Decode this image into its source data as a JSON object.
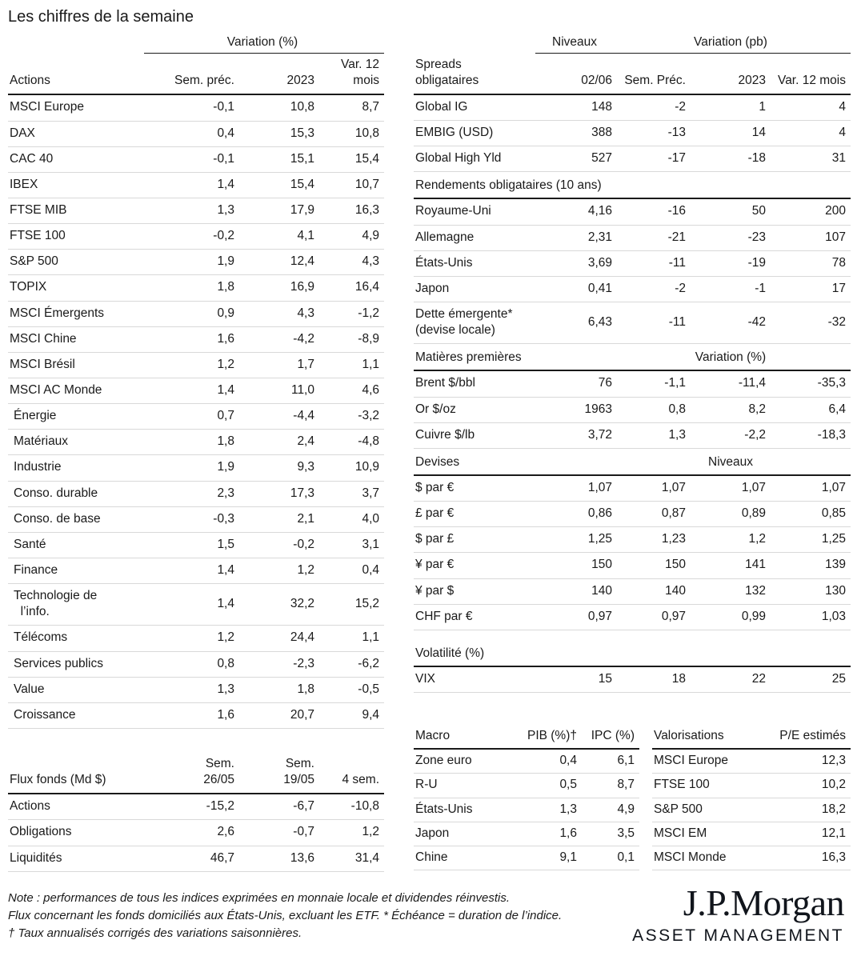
{
  "page_title": "Les chiffres de la semaine",
  "colors": {
    "text": "#1a1a1a",
    "rule_dark": "#1a1a1a",
    "rule_light": "#d9d9d9",
    "background": "#ffffff"
  },
  "actions_table": {
    "group_header": "Variation (%)",
    "col_label": "Actions",
    "columns": [
      "Sem. préc.",
      "2023",
      "Var. 12 mois"
    ],
    "rows": [
      {
        "label": "MSCI Europe",
        "values": [
          "-0,1",
          "10,8",
          "8,7"
        ]
      },
      {
        "label": "DAX",
        "values": [
          "0,4",
          "15,3",
          "10,8"
        ]
      },
      {
        "label": "CAC 40",
        "values": [
          "-0,1",
          "15,1",
          "15,4"
        ]
      },
      {
        "label": "IBEX",
        "values": [
          "1,4",
          "15,4",
          "10,7"
        ]
      },
      {
        "label": "FTSE MIB",
        "values": [
          "1,3",
          "17,9",
          "16,3"
        ]
      },
      {
        "label": "FTSE 100",
        "values": [
          "-0,2",
          "4,1",
          "4,9"
        ]
      },
      {
        "label": "S&P 500",
        "values": [
          "1,9",
          "12,4",
          "4,3"
        ]
      },
      {
        "label": "TOPIX",
        "values": [
          "1,8",
          "16,9",
          "16,4"
        ]
      },
      {
        "label": "MSCI Émergents",
        "values": [
          "0,9",
          "4,3",
          "-1,2"
        ]
      },
      {
        "label": "MSCI Chine",
        "values": [
          "1,6",
          "-4,2",
          "-8,9"
        ]
      },
      {
        "label": "MSCI Brésil",
        "values": [
          "1,2",
          "1,7",
          "1,1"
        ]
      },
      {
        "label": "MSCI AC Monde",
        "values": [
          "1,4",
          "11,0",
          "4,6"
        ]
      },
      {
        "label": "Énergie",
        "indent": true,
        "values": [
          "0,7",
          "-4,4",
          "-3,2"
        ]
      },
      {
        "label": "Matériaux",
        "indent": true,
        "values": [
          "1,8",
          "2,4",
          "-4,8"
        ]
      },
      {
        "label": "Industrie",
        "indent": true,
        "values": [
          "1,9",
          "9,3",
          "10,9"
        ]
      },
      {
        "label": "Conso. durable",
        "indent": true,
        "values": [
          "2,3",
          "17,3",
          "3,7"
        ]
      },
      {
        "label": "Conso. de base",
        "indent": true,
        "values": [
          "-0,3",
          "2,1",
          "4,0"
        ]
      },
      {
        "label": "Santé",
        "indent": true,
        "values": [
          "1,5",
          "-0,2",
          "3,1"
        ]
      },
      {
        "label": "Finance",
        "indent": true,
        "values": [
          "1,4",
          "1,2",
          "0,4"
        ]
      },
      {
        "label": "Technologie de\n  l’info.",
        "indent": true,
        "values": [
          "1,4",
          "32,2",
          "15,2"
        ]
      },
      {
        "label": "Télécoms",
        "indent": true,
        "values": [
          "1,2",
          "24,4",
          "1,1"
        ]
      },
      {
        "label": "Services publics",
        "indent": true,
        "values": [
          "0,8",
          "-2,3",
          "-6,2"
        ]
      },
      {
        "label": "Value",
        "indent": true,
        "values": [
          "1,3",
          "1,8",
          "-0,5"
        ]
      },
      {
        "label": "Croissance",
        "indent": true,
        "values": [
          "1,6",
          "20,7",
          "9,4"
        ]
      }
    ]
  },
  "flux_table": {
    "col_label": "Flux fonds (Md $)",
    "columns": [
      "Sem.\n26/05",
      "Sem.\n19/05",
      "4 sem."
    ],
    "rows": [
      {
        "label": "Actions",
        "values": [
          "-15,2",
          "-6,7",
          "-10,8"
        ]
      },
      {
        "label": "Obligations",
        "values": [
          "2,6",
          "-0,7",
          "1,2"
        ]
      },
      {
        "label": "Liquidités",
        "values": [
          "46,7",
          "13,6",
          "31,4"
        ]
      }
    ]
  },
  "spreads_table": {
    "group_header_niveaux": "Niveaux",
    "group_header_variation": "Variation (pb)",
    "col_label": "Spreads\nobligataires",
    "columns": [
      "02/06",
      "Sem. Préc.",
      "2023",
      "Var. 12 mois"
    ],
    "rows": [
      {
        "label": "Global IG",
        "values": [
          "148",
          "-2",
          "1",
          "4"
        ]
      },
      {
        "label": "EMBIG (USD)",
        "values": [
          "388",
          "-13",
          "14",
          "4"
        ]
      },
      {
        "label": "Global High Yld",
        "values": [
          "527",
          "-17",
          "-18",
          "31"
        ]
      }
    ]
  },
  "rendements_table": {
    "title": "Rendements obligataires (10 ans)",
    "rows": [
      {
        "label": "Royaume-Uni",
        "values": [
          "4,16",
          "-16",
          "50",
          "200"
        ]
      },
      {
        "label": "Allemagne",
        "values": [
          "2,31",
          "-21",
          "-23",
          "107"
        ]
      },
      {
        "label": "États-Unis",
        "values": [
          "3,69",
          "-11",
          "-19",
          "78"
        ]
      },
      {
        "label": "Japon",
        "values": [
          "0,41",
          "-2",
          "-1",
          "17"
        ]
      },
      {
        "label": "Dette émergente*\n(devise locale)",
        "values": [
          "6,43",
          "-11",
          "-42",
          "-32"
        ]
      }
    ]
  },
  "matieres_table": {
    "title": "Matières premières",
    "group_header": "Variation (%)",
    "rows": [
      {
        "label": "Brent $/bbl",
        "values": [
          "76",
          "-1,1",
          "-11,4",
          "-35,3"
        ]
      },
      {
        "label": "Or $/oz",
        "values": [
          "1963",
          "0,8",
          "8,2",
          "6,4"
        ]
      },
      {
        "label": "Cuivre $/lb",
        "values": [
          "3,72",
          "1,3",
          "-2,2",
          "-18,3"
        ]
      }
    ]
  },
  "devises_table": {
    "title": "Devises",
    "group_header": "Niveaux",
    "rows": [
      {
        "label": "$ par €",
        "values": [
          "1,07",
          "1,07",
          "1,07",
          "1,07"
        ]
      },
      {
        "label": "£ par €",
        "values": [
          "0,86",
          "0,87",
          "0,89",
          "0,85"
        ]
      },
      {
        "label": "$ par £",
        "values": [
          "1,25",
          "1,23",
          "1,2",
          "1,25"
        ]
      },
      {
        "label": "¥ par €",
        "values": [
          "150",
          "150",
          "141",
          "139"
        ]
      },
      {
        "label": "¥ par $",
        "values": [
          "140",
          "140",
          "132",
          "130"
        ]
      },
      {
        "label": "CHF par €",
        "values": [
          "0,97",
          "0,97",
          "0,99",
          "1,03"
        ]
      }
    ]
  },
  "volatilite_table": {
    "title": "Volatilité (%)",
    "rows": [
      {
        "label": "VIX",
        "values": [
          "15",
          "18",
          "22",
          "25"
        ]
      }
    ]
  },
  "macro_table": {
    "col_label": "Macro",
    "columns": [
      "PIB (%)†",
      "IPC (%)"
    ],
    "rows": [
      {
        "label": "Zone euro",
        "values": [
          "0,4",
          "6,1"
        ]
      },
      {
        "label": "R-U",
        "values": [
          "0,5",
          "8,7"
        ]
      },
      {
        "label": "États-Unis",
        "values": [
          "1,3",
          "4,9"
        ]
      },
      {
        "label": "Japon",
        "values": [
          "1,6",
          "3,5"
        ]
      },
      {
        "label": "Chine",
        "values": [
          "9,1",
          "0,1"
        ]
      }
    ]
  },
  "valorisations_table": {
    "col_label": "Valorisations",
    "columns": [
      "P/E estimés"
    ],
    "rows": [
      {
        "label": "MSCI Europe",
        "values": [
          "12,3"
        ]
      },
      {
        "label": "FTSE 100",
        "values": [
          "10,2"
        ]
      },
      {
        "label": "S&P 500",
        "values": [
          "18,2"
        ]
      },
      {
        "label": "MSCI EM",
        "values": [
          "12,1"
        ]
      },
      {
        "label": "MSCI Monde",
        "values": [
          "16,3"
        ]
      }
    ]
  },
  "footnotes": [
    "Note : performances de tous les indices exprimées en monnaie locale et dividendes réinvestis.",
    "Flux concernant les fonds domiciliés aux États-Unis, excluant les ETF. * Échéance = duration de l’indice.",
    "† Taux annualisés corrigés des variations saisonnières."
  ],
  "logo": {
    "brand": "J.P.Morgan",
    "division": "ASSET MANAGEMENT"
  }
}
